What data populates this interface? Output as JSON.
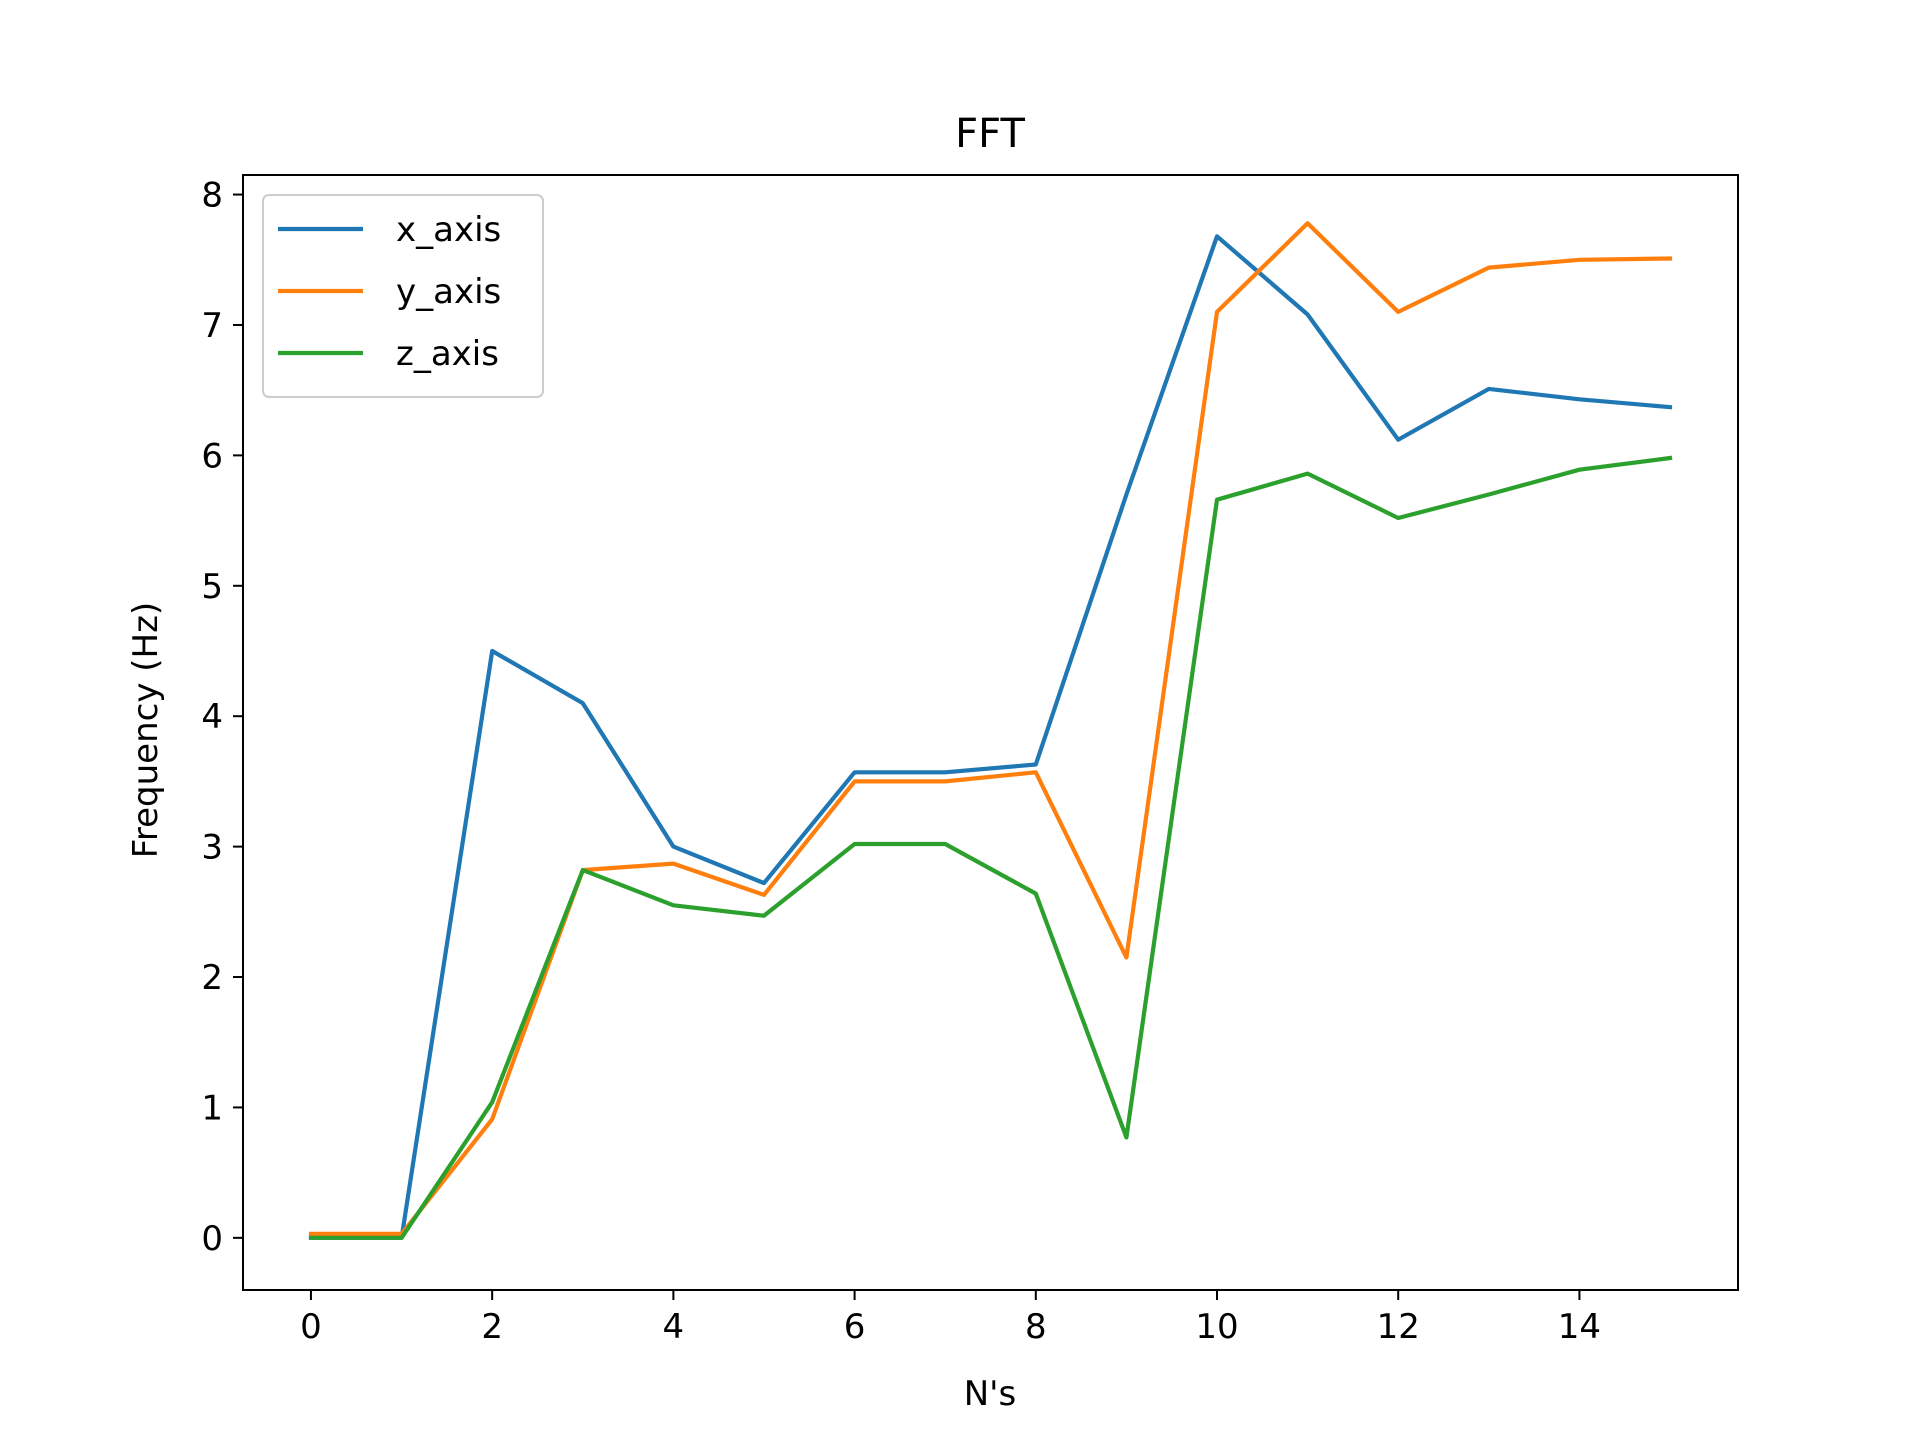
{
  "chart_data": {
    "type": "line",
    "title": "FFT",
    "xlabel": "N's",
    "ylabel": "Frequency (Hz)",
    "x": [
      0,
      1,
      2,
      3,
      4,
      5,
      6,
      7,
      8,
      9,
      10,
      11,
      12,
      13,
      14,
      15
    ],
    "xlim": [
      -0.75,
      15.75
    ],
    "ylim": [
      -0.4,
      8.15
    ],
    "xticks": [
      0,
      2,
      4,
      6,
      8,
      10,
      12,
      14
    ],
    "yticks": [
      0,
      1,
      2,
      3,
      4,
      5,
      6,
      7,
      8
    ],
    "grid": false,
    "legend_position": "top-left",
    "series": [
      {
        "name": "x_axis",
        "color": "#1f77b4",
        "values": [
          0.0,
          0.0,
          4.5,
          4.1,
          3.0,
          2.72,
          3.57,
          3.57,
          3.63,
          5.7,
          7.68,
          7.08,
          6.12,
          6.51,
          6.43,
          6.37
        ]
      },
      {
        "name": "y_axis",
        "color": "#ff7f0e",
        "values": [
          0.03,
          0.03,
          0.91,
          2.82,
          2.87,
          2.63,
          3.5,
          3.5,
          3.57,
          2.15,
          7.1,
          7.78,
          7.1,
          7.44,
          7.5,
          7.51
        ]
      },
      {
        "name": "z_axis",
        "color": "#2ca02c",
        "values": [
          0.0,
          0.0,
          1.04,
          2.82,
          2.55,
          2.47,
          3.02,
          3.02,
          2.64,
          0.77,
          5.66,
          5.86,
          5.52,
          5.7,
          5.89,
          5.98
        ]
      }
    ]
  }
}
